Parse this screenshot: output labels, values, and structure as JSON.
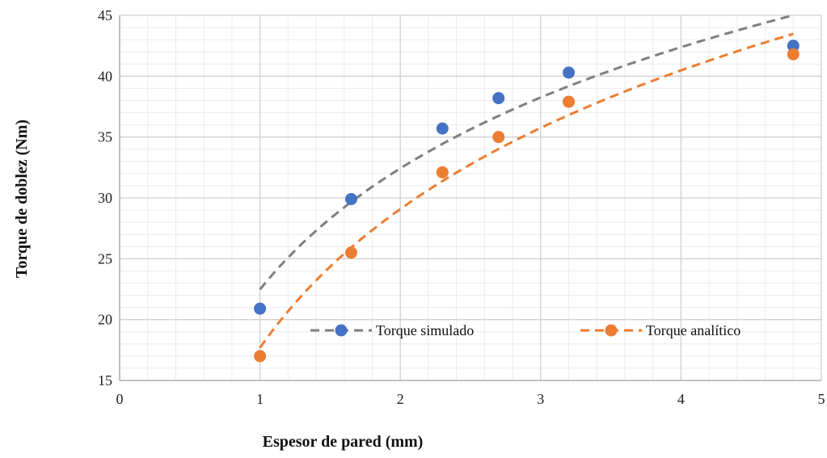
{
  "chart_data": {
    "type": "scatter",
    "title": "",
    "xlabel": "Espesor de pared (mm)",
    "ylabel": "Torque de doblez (Nm)",
    "xlim": [
      0,
      5
    ],
    "ylim": [
      15,
      45
    ],
    "xticks": [
      0,
      1,
      2,
      3,
      4,
      5
    ],
    "yticks": [
      15,
      20,
      25,
      30,
      35,
      40,
      45
    ],
    "grid": true,
    "minor_grid": true,
    "legend_position": "bottom-inside",
    "series": [
      {
        "name": "Torque simulado",
        "color": "#4472C4",
        "trendline_color": "#7F7F7F",
        "x": [
          1,
          1.65,
          2.3,
          2.7,
          3.2,
          4.8
        ],
        "y": [
          20.9,
          29.9,
          35.7,
          38.2,
          40.3,
          42.5
        ]
      },
      {
        "name": "Torque analítico",
        "color": "#ED7D31",
        "trendline_color": "#ED7D31",
        "x": [
          1,
          1.65,
          2.3,
          2.7,
          3.2,
          4.8
        ],
        "y": [
          17.0,
          25.5,
          32.1,
          35.0,
          37.9,
          41.8
        ]
      }
    ]
  }
}
